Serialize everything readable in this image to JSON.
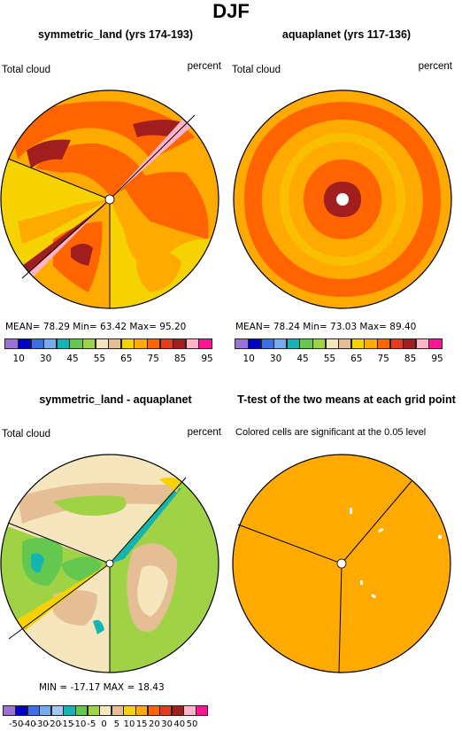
{
  "title": "DJF",
  "panels": [
    {
      "title": "symmetric_land (yrs 174-193)",
      "left_label": "Total cloud",
      "right_label": "percent",
      "stats": "MEAN=  78.29  Min=  63.42  Max=  95.20"
    },
    {
      "title": "aquaplanet (yrs 117-136)",
      "left_label": "Total cloud",
      "right_label": "percent",
      "stats": "MEAN=  78.24  Min=  73.03  Max=  89.40"
    },
    {
      "title": "symmetric_land - aquaplanet",
      "left_label": "Total cloud",
      "right_label": "percent",
      "stats": "MIN = -17.17  MAX =  18.43"
    },
    {
      "title": "T-test of the two means at each grid point",
      "note": "Colored cells are significant at the 0.05 level"
    }
  ],
  "legend_cloud": {
    "colors": [
      "#9b72d6",
      "#0000c8",
      "#3c6ee6",
      "#78aaf0",
      "#14b4b4",
      "#64c850",
      "#a0d246",
      "#f5e6be",
      "#e6be96",
      "#f5d200",
      "#ffaa00",
      "#ff6400",
      "#e63c1e",
      "#a01e1e",
      "#ffb4c8",
      "#ff1496"
    ],
    "ticks": [
      "10",
      "30",
      "45",
      "55",
      "65",
      "75",
      "85",
      "95"
    ]
  },
  "legend_diff": {
    "colors": [
      "#9b72d6",
      "#0000c8",
      "#3c6ee6",
      "#78aaf0",
      "#a0c8f0",
      "#14b4b4",
      "#64c850",
      "#a0d246",
      "#f5e6be",
      "#e6be96",
      "#f5d200",
      "#ffaa00",
      "#ff6400",
      "#e63c1e",
      "#a01e1e",
      "#ffb4c8",
      "#ff1496"
    ],
    "ticks": [
      "-50",
      "-40",
      "-30",
      "-20",
      "-15",
      "-10",
      "-5",
      "0",
      "5",
      "10",
      "15",
      "20",
      "30",
      "40",
      "50"
    ]
  },
  "map_colors": {
    "bg_orange": "#ffaa00",
    "red": "#ff6400",
    "darkred": "#a01e1e",
    "yellow": "#f5d200",
    "pink": "#ffb4c8",
    "diff_bg": "#f5e6be",
    "diff_tan": "#e6be96",
    "green": "#a0d246",
    "green2": "#64c850",
    "teal": "#14b4b4"
  }
}
